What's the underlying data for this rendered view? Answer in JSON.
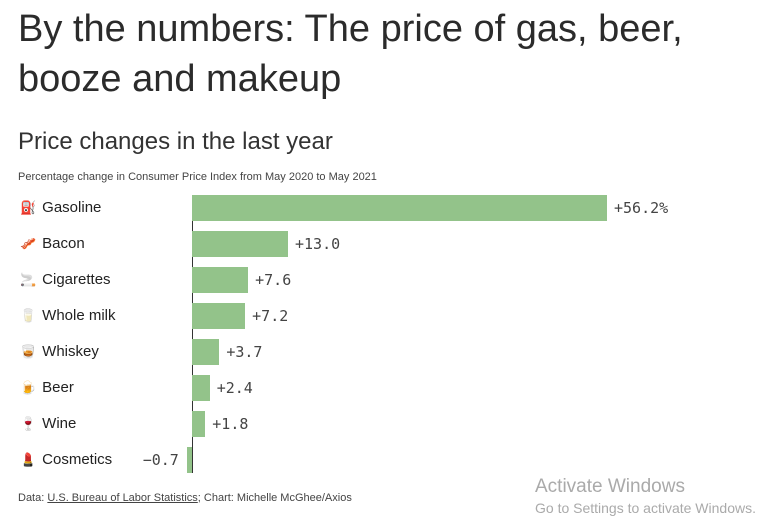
{
  "title": "By the numbers: The price of gas, beer, booze and makeup",
  "chart_data": {
    "type": "bar",
    "orientation": "horizontal",
    "title": "Price changes in the last year",
    "subtitle": "Percentage change in Consumer Price Index from May 2020 to May 2021",
    "categories": [
      "Gasoline",
      "Bacon",
      "Cigarettes",
      "Whole milk",
      "Whiskey",
      "Beer",
      "Wine",
      "Cosmetics"
    ],
    "icons": [
      "fuel-pump-icon",
      "bacon-icon",
      "cigarette-icon",
      "milk-glass-icon",
      "whiskey-glass-icon",
      "beer-mug-icon",
      "wine-glass-icon",
      "lipstick-icon"
    ],
    "icon_glyphs": [
      "⛽",
      "🥓",
      "🚬",
      "🥛",
      "🥃",
      "🍺",
      "🍷",
      "💄"
    ],
    "values": [
      56.2,
      13.0,
      7.6,
      7.2,
      3.7,
      2.4,
      1.8,
      -0.7
    ],
    "value_labels": [
      "+56.2%",
      "+13.0",
      "+7.6",
      "+7.2",
      "+3.7",
      "+2.4",
      "+1.8",
      "−0.7"
    ],
    "bar_color": "#93c38a",
    "xlim": [
      -0.7,
      56.2
    ]
  },
  "footer": {
    "prefix": "Data: ",
    "source": "U.S. Bureau of Labor Statistics",
    "suffix": "; Chart: Michelle McGhee/Axios"
  },
  "watermark": {
    "line1": "Activate Windows",
    "line2": "Go to Settings to activate Windows."
  }
}
